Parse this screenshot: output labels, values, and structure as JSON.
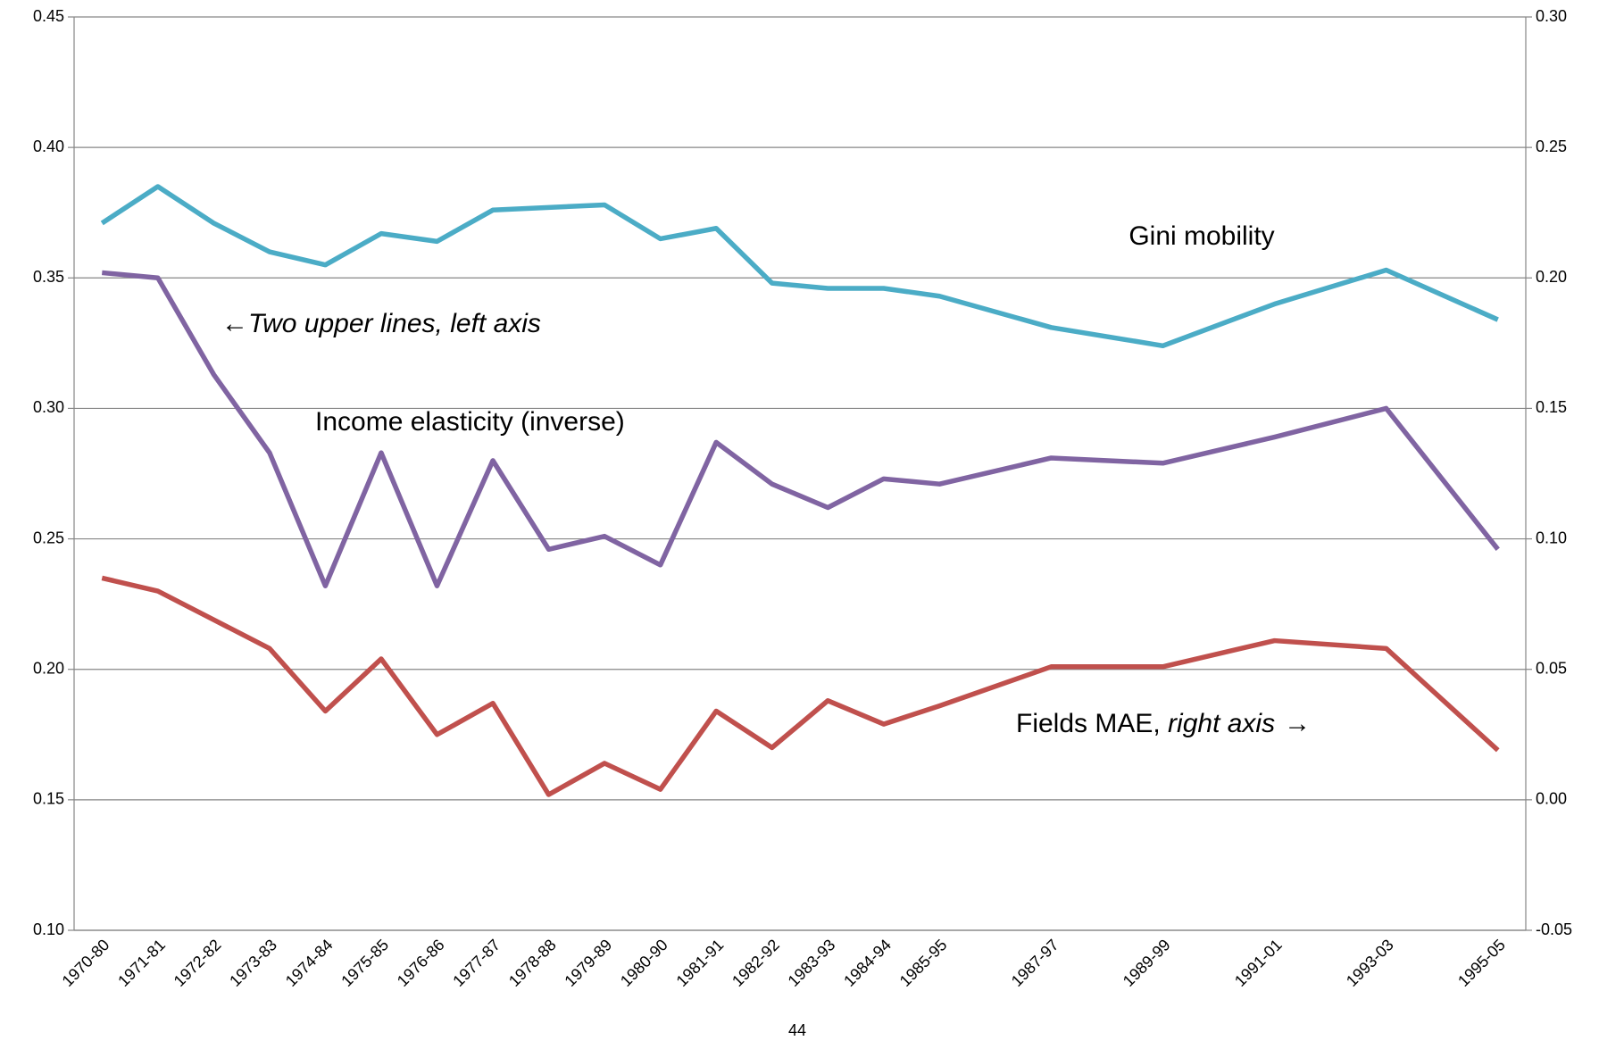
{
  "chart_data": {
    "type": "line",
    "x": [
      1970,
      1971,
      1972,
      1973,
      1974,
      1975,
      1976,
      1977,
      1978,
      1979,
      1980,
      1981,
      1982,
      1983,
      1984,
      1985,
      1987,
      1989,
      1991,
      1993,
      1995
    ],
    "xlim": [
      1969.5,
      1995.5
    ],
    "xticks": [
      {
        "value": 1970,
        "label": "1970-80"
      },
      {
        "value": 1971,
        "label": "1971-81"
      },
      {
        "value": 1972,
        "label": "1972-82"
      },
      {
        "value": 1973,
        "label": "1973-83"
      },
      {
        "value": 1974,
        "label": "1974-84"
      },
      {
        "value": 1975,
        "label": "1975-85"
      },
      {
        "value": 1976,
        "label": "1976-86"
      },
      {
        "value": 1977,
        "label": "1977-87"
      },
      {
        "value": 1978,
        "label": "1978-88"
      },
      {
        "value": 1979,
        "label": "1979-89"
      },
      {
        "value": 1980,
        "label": "1980-90"
      },
      {
        "value": 1981,
        "label": "1981-91"
      },
      {
        "value": 1982,
        "label": "1982-92"
      },
      {
        "value": 1983,
        "label": "1983-93"
      },
      {
        "value": 1984,
        "label": "1984-94"
      },
      {
        "value": 1985,
        "label": "1985-95"
      },
      {
        "value": 1987,
        "label": "1987-97"
      },
      {
        "value": 1989,
        "label": "1989-99"
      },
      {
        "value": 1991,
        "label": "1991-01"
      },
      {
        "value": 1993,
        "label": "1993-03"
      },
      {
        "value": 1995,
        "label": "1995-05"
      }
    ],
    "ylim": [
      0.1,
      0.45
    ],
    "yticks": [
      {
        "value": 0.1,
        "label": "0.10"
      },
      0.15,
      {
        "value": 0.2,
        "label": "0.20"
      },
      0.25,
      {
        "value": 0.3,
        "label": "0.30"
      },
      0.35,
      {
        "value": 0.4,
        "label": "0.40"
      },
      0.45
    ],
    "y2lim": [
      -0.05,
      0.3
    ],
    "y2ticks": [
      -0.05,
      {
        "value": 0,
        "label": "0.00"
      },
      0.05,
      {
        "value": 0.1,
        "label": "0.10"
      },
      0.15,
      {
        "value": 0.2,
        "label": "0.20"
      },
      0.25,
      {
        "value": 0.3,
        "label": "0.30"
      }
    ],
    "grid": true,
    "series": [
      {
        "color": "#4bacc6",
        "values": [
          0.371,
          0.385,
          0.371,
          0.36,
          0.355,
          0.367,
          0.364,
          0.376,
          0.377,
          0.378,
          0.365,
          0.369,
          0.348,
          0.346,
          0.346,
          0.343,
          0.331,
          0.324,
          0.34,
          0.353,
          0.334
        ]
      },
      {
        "color": "#8064a2",
        "values": [
          0.352,
          0.35,
          0.313,
          0.283,
          0.232,
          0.283,
          0.232,
          0.28,
          0.246,
          0.251,
          0.24,
          0.287,
          0.271,
          0.262,
          0.273,
          0.271,
          0.281,
          0.279,
          0.289,
          0.3,
          0.246
        ]
      },
      {
        "color": "#c0504d",
        "axis": "y2",
        "values": [
          0.085,
          0.08,
          0.069,
          0.058,
          0.034,
          0.054,
          0.025,
          0.037,
          0.002,
          0.014,
          0.004,
          0.034,
          0.02,
          0.038,
          0.029,
          0.036,
          0.051,
          0.051,
          0.061,
          0.058,
          0.019
        ]
      }
    ],
    "annotations": [
      "Gini mobility",
      "←",
      "Two upper lines, left axis",
      "Income elasticity (inverse)",
      "Fields MAE, ",
      "right axis",
      "→"
    ],
    "page_number": "44"
  }
}
